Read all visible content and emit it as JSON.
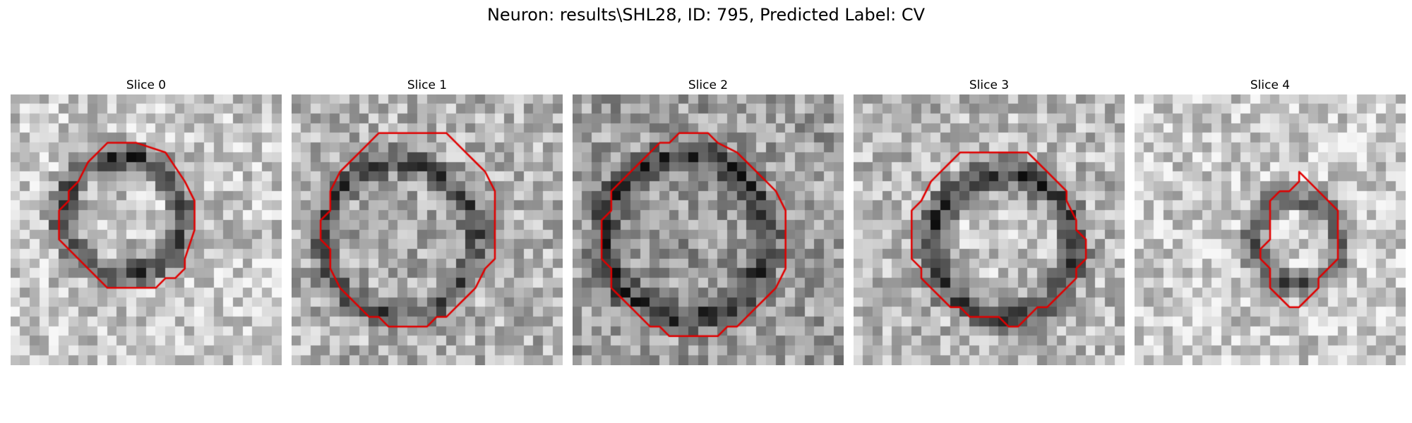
{
  "figure": {
    "title": "Neuron: results\\SHL28, ID: 795, Predicted Label: CV",
    "grid_size": 28,
    "contour_color": "#e00000",
    "colormap": "gray",
    "background": "#ffffff"
  },
  "slices": [
    {
      "title": "Slice 0",
      "seed": 11,
      "base_brightness": 0.78,
      "ring_darkness": 0.55,
      "core_brightness": 0.72,
      "contour": [
        [
          11,
          5
        ],
        [
          13,
          5
        ],
        [
          16,
          6
        ],
        [
          18,
          9
        ],
        [
          19,
          11
        ],
        [
          19,
          14
        ],
        [
          18,
          17
        ],
        [
          18,
          18
        ],
        [
          17,
          19
        ],
        [
          16,
          19
        ],
        [
          15,
          20
        ],
        [
          10,
          20
        ],
        [
          9,
          19
        ],
        [
          7,
          17
        ],
        [
          6,
          16
        ],
        [
          5,
          15
        ],
        [
          5,
          12
        ],
        [
          6,
          11
        ],
        [
          6,
          10
        ],
        [
          7,
          9
        ],
        [
          8,
          7
        ],
        [
          9,
          6
        ],
        [
          10,
          5
        ]
      ]
    },
    {
      "title": "Slice 1",
      "seed": 23,
      "base_brightness": 0.7,
      "ring_darkness": 0.4,
      "core_brightness": 0.62,
      "contour": [
        [
          9,
          4
        ],
        [
          16,
          4
        ],
        [
          18,
          6
        ],
        [
          19,
          7
        ],
        [
          20,
          8
        ],
        [
          21,
          10
        ],
        [
          21,
          17
        ],
        [
          20,
          18
        ],
        [
          19,
          20
        ],
        [
          18,
          21
        ],
        [
          17,
          22
        ],
        [
          16,
          23
        ],
        [
          15,
          23
        ],
        [
          14,
          24
        ],
        [
          10,
          24
        ],
        [
          9,
          23
        ],
        [
          8,
          23
        ],
        [
          7,
          22
        ],
        [
          6,
          21
        ],
        [
          5,
          20
        ],
        [
          4,
          18
        ],
        [
          4,
          16
        ],
        [
          3,
          15
        ],
        [
          3,
          13
        ],
        [
          4,
          12
        ],
        [
          4,
          10
        ],
        [
          5,
          8
        ],
        [
          6,
          7
        ],
        [
          7,
          6
        ],
        [
          8,
          5
        ]
      ]
    },
    {
      "title": "Slice 2",
      "seed": 37,
      "base_brightness": 0.62,
      "ring_darkness": 0.45,
      "core_brightness": 0.58,
      "contour": [
        [
          11,
          4
        ],
        [
          14,
          4
        ],
        [
          15,
          5
        ],
        [
          17,
          6
        ],
        [
          18,
          7
        ],
        [
          20,
          9
        ],
        [
          21,
          10
        ],
        [
          22,
          12
        ],
        [
          22,
          18
        ],
        [
          21,
          20
        ],
        [
          20,
          21
        ],
        [
          19,
          22
        ],
        [
          18,
          23
        ],
        [
          17,
          24
        ],
        [
          16,
          24
        ],
        [
          15,
          25
        ],
        [
          10,
          25
        ],
        [
          9,
          24
        ],
        [
          8,
          24
        ],
        [
          7,
          23
        ],
        [
          6,
          22
        ],
        [
          5,
          21
        ],
        [
          4,
          20
        ],
        [
          4,
          18
        ],
        [
          3,
          17
        ],
        [
          3,
          13
        ],
        [
          4,
          12
        ],
        [
          4,
          10
        ],
        [
          5,
          9
        ],
        [
          6,
          8
        ],
        [
          7,
          7
        ],
        [
          8,
          6
        ],
        [
          9,
          5
        ],
        [
          10,
          5
        ]
      ]
    },
    {
      "title": "Slice 3",
      "seed": 53,
      "base_brightness": 0.72,
      "ring_darkness": 0.5,
      "core_brightness": 0.8,
      "contour": [
        [
          12,
          6
        ],
        [
          18,
          6
        ],
        [
          19,
          7
        ],
        [
          20,
          8
        ],
        [
          21,
          9
        ],
        [
          22,
          10
        ],
        [
          22,
          11
        ],
        [
          23,
          13
        ],
        [
          23,
          14
        ],
        [
          24,
          15
        ],
        [
          24,
          17
        ],
        [
          23,
          18
        ],
        [
          23,
          19
        ],
        [
          22,
          20
        ],
        [
          21,
          21
        ],
        [
          20,
          22
        ],
        [
          19,
          22
        ],
        [
          18,
          23
        ],
        [
          17,
          24
        ],
        [
          16,
          24
        ],
        [
          15,
          23
        ],
        [
          12,
          23
        ],
        [
          11,
          22
        ],
        [
          10,
          22
        ],
        [
          9,
          21
        ],
        [
          8,
          20
        ],
        [
          7,
          19
        ],
        [
          7,
          18
        ],
        [
          6,
          17
        ],
        [
          6,
          12
        ],
        [
          7,
          11
        ],
        [
          8,
          9
        ],
        [
          9,
          8
        ],
        [
          10,
          7
        ],
        [
          11,
          6
        ]
      ]
    },
    {
      "title": "Slice 4",
      "seed": 71,
      "base_brightness": 0.8,
      "ring_darkness": 0.45,
      "core_brightness": 0.85,
      "contour": [
        [
          17,
          8
        ],
        [
          18,
          9
        ],
        [
          19,
          10
        ],
        [
          20,
          11
        ],
        [
          21,
          12
        ],
        [
          21,
          17
        ],
        [
          20,
          18
        ],
        [
          19,
          19
        ],
        [
          19,
          20
        ],
        [
          18,
          21
        ],
        [
          17,
          22
        ],
        [
          16,
          22
        ],
        [
          15,
          21
        ],
        [
          14,
          20
        ],
        [
          14,
          18
        ],
        [
          13,
          17
        ],
        [
          13,
          16
        ],
        [
          14,
          15
        ],
        [
          14,
          11
        ],
        [
          15,
          10
        ],
        [
          16,
          10
        ],
        [
          17,
          9
        ]
      ]
    }
  ]
}
